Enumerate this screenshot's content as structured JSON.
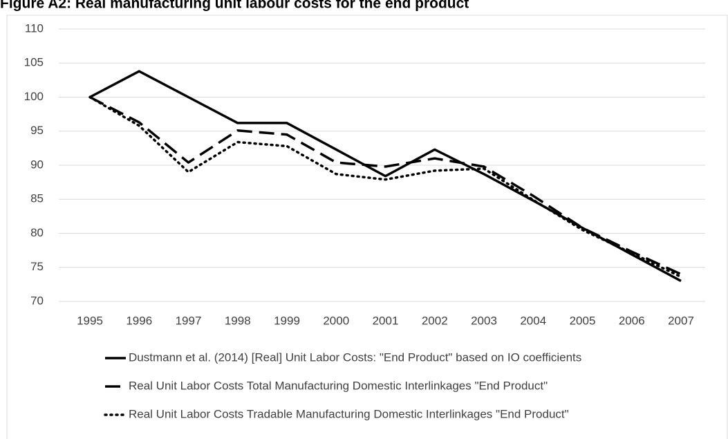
{
  "chart_data": {
    "type": "line",
    "title": "Figure A2: Real manufacturing unit labour costs for the end product",
    "categories": [
      "1995",
      "1996",
      "1997",
      "1998",
      "1999",
      "2000",
      "2001",
      "2002",
      "2003",
      "2004",
      "2005",
      "2006",
      "2007"
    ],
    "series": [
      {
        "name": "Dustmann et al. (2014) [Real] Unit Labor Costs: \"End Product\" based on IO coefficients",
        "color": "#000000",
        "dash": "solid",
        "values": [
          100,
          103.8,
          100,
          96.2,
          96.2,
          92.3,
          88.4,
          92.3,
          88.7,
          84.8,
          80.8,
          76.9,
          73
        ]
      },
      {
        "name": "Real Unit Labor Costs Total Manufacturing Domestic Interlinkages \"End Product\"",
        "color": "#000000",
        "dash": "dashed",
        "values": [
          100,
          96.3,
          90.4,
          95.1,
          94.5,
          90.4,
          89.8,
          91,
          89.8,
          85.5,
          80.8,
          77.3,
          74
        ]
      },
      {
        "name": "Real Unit Labor Costs Tradable Manufacturing Domestic Interlinkages \"End Product\"",
        "color": "#000000",
        "dash": "dotted",
        "values": [
          100,
          95.8,
          89,
          93.4,
          92.8,
          88.7,
          87.9,
          89.2,
          89.5,
          84.9,
          80.5,
          77.1,
          73.6
        ]
      }
    ],
    "ylim": [
      70,
      110
    ],
    "yticks": [
      70,
      75,
      80,
      85,
      90,
      95,
      100,
      105,
      110
    ],
    "grid": true,
    "legend": "bottom"
  }
}
